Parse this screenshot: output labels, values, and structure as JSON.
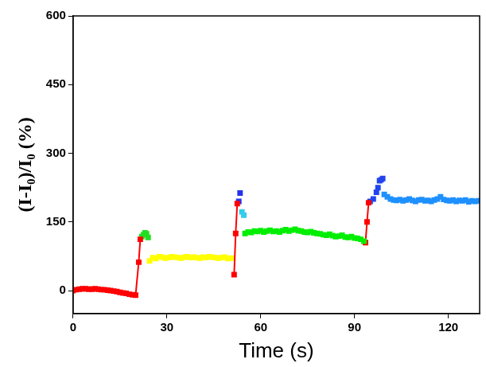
{
  "chart_data": {
    "type": "line",
    "x_label": "Time (s)",
    "y_label": "(I-I₀)/I₀ (%)",
    "xlim": [
      0,
      130
    ],
    "xticks": [
      0,
      30,
      60,
      90,
      120
    ],
    "ylim": [
      -50,
      600
    ],
    "yticks": [
      0,
      150,
      300,
      450,
      600
    ],
    "grid": false,
    "marker": "square",
    "series": [
      {
        "color": "#ff0000",
        "line_style": "solid",
        "x": [
          0,
          1,
          2,
          3,
          4,
          5,
          6,
          7,
          8,
          9,
          10,
          11,
          12,
          13,
          14,
          15,
          16,
          17,
          18,
          19,
          20,
          21,
          21.5
        ],
        "values": [
          0,
          2,
          3,
          4,
          4,
          3,
          3,
          4,
          3,
          2,
          2,
          1,
          0,
          -1,
          -2,
          -4,
          -5,
          -6,
          -8,
          -9,
          -10,
          62,
          112
        ]
      },
      {
        "color": "#22dd22",
        "line_style": "none",
        "x": [
          22,
          22.5,
          23,
          23.5,
          24
        ],
        "values": [
          118,
          122,
          126,
          124,
          116
        ]
      },
      {
        "color": "#ffff00",
        "line_style": "none",
        "x": [
          24.5,
          25.5,
          26.5,
          27.5,
          28.5,
          29.5,
          30.5,
          31.5,
          32.5,
          33.5,
          34.5,
          35.5,
          36.5,
          37.5,
          38.5,
          39.5,
          40.5,
          41.5,
          42.5,
          43.5,
          44.5,
          45.5,
          46.5,
          47.5,
          48.5,
          49.5,
          50.5
        ],
        "values": [
          65,
          72,
          70,
          74,
          73,
          71,
          72,
          74,
          73,
          72,
          71,
          73,
          74,
          72,
          73,
          72,
          71,
          73,
          72,
          74,
          73,
          72,
          71,
          72,
          73,
          70,
          71
        ]
      },
      {
        "color": "#ff0000",
        "line_style": "solid",
        "x": [
          51.5,
          52,
          52.5
        ],
        "values": [
          35,
          125,
          190
        ]
      },
      {
        "color": "#2233ee",
        "line_style": "none",
        "x": [
          53,
          53.4
        ],
        "values": [
          195,
          213
        ]
      },
      {
        "color": "#33ccee",
        "line_style": "none",
        "x": [
          54,
          54.6
        ],
        "values": [
          172,
          165
        ]
      },
      {
        "color": "#00ee00",
        "line_style": "none",
        "x": [
          55,
          56,
          57,
          58,
          59,
          60,
          61,
          62,
          63,
          64,
          65,
          66,
          67,
          68,
          69,
          70,
          71,
          72,
          73,
          74,
          75,
          76,
          77,
          78,
          79,
          80,
          81,
          82,
          83,
          84,
          85,
          86,
          87,
          88,
          89,
          90,
          91,
          92,
          93
        ],
        "values": [
          125,
          128,
          127,
          130,
          129,
          131,
          128,
          130,
          132,
          129,
          130,
          128,
          131,
          133,
          130,
          132,
          134,
          131,
          130,
          128,
          127,
          129,
          126,
          125,
          124,
          122,
          121,
          123,
          120,
          118,
          119,
          121,
          117,
          116,
          118,
          115,
          114,
          112,
          108
        ]
      },
      {
        "color": "#ff0000",
        "line_style": "solid",
        "x": [
          93.5,
          94,
          94.5
        ],
        "values": [
          105,
          150,
          192
        ]
      },
      {
        "color": "#2244ee",
        "line_style": "none",
        "x": [
          95,
          96,
          97,
          97.5,
          98,
          98.5,
          99
        ],
        "values": [
          195,
          200,
          215,
          225,
          240,
          242,
          245
        ]
      },
      {
        "color": "#1e90ff",
        "line_style": "none",
        "x": [
          99.5,
          100.5,
          101.5,
          102.5,
          103.5,
          104.5,
          105.5,
          106.5,
          107.5,
          108.5,
          109.5,
          110.5,
          111.5,
          112.5,
          113.5,
          114.5,
          115.5,
          116.5,
          117.5,
          118.5,
          119.5,
          120.5,
          121.5,
          122.5,
          123.5,
          124.5,
          125.5,
          126.5,
          127.5,
          128.5,
          129.5
        ],
        "values": [
          210,
          205,
          200,
          198,
          197,
          199,
          196,
          198,
          200,
          197,
          195,
          198,
          199,
          196,
          197,
          195,
          198,
          200,
          205,
          199,
          197,
          196,
          198,
          195,
          197,
          196,
          198,
          194,
          196,
          195,
          196
        ]
      }
    ]
  }
}
